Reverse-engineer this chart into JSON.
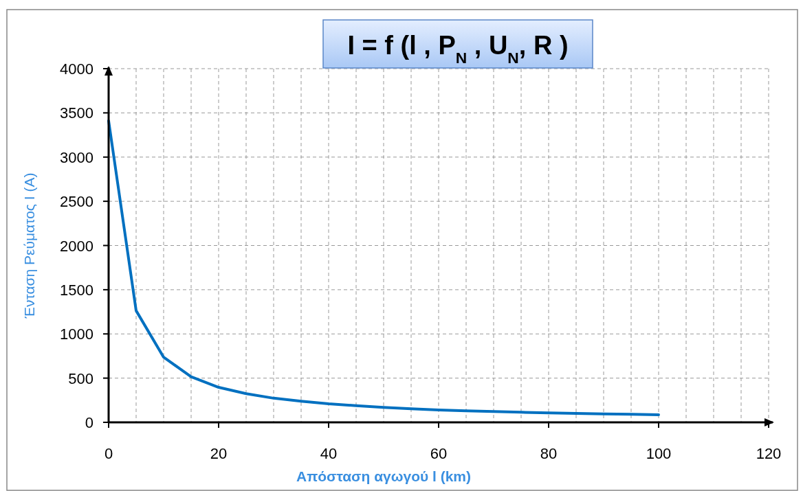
{
  "chart_data": {
    "type": "line",
    "title": "I = f (l , P$_{N}$  , U$_{N}$, R )",
    "xlabel": "Απόσταση αγωγού  l (km)",
    "ylabel": "Ένταση Ρεύματος  I (A)",
    "x": [
      0,
      5,
      10,
      15,
      20,
      25,
      30,
      35,
      40,
      45,
      50,
      55,
      60,
      65,
      70,
      75,
      80,
      85,
      90,
      95,
      100
    ],
    "series": [
      {
        "color": "#0070c0",
        "values": [
          3410,
          1263,
          736,
          516,
          396,
          324,
          273,
          238,
          209,
          189,
          168,
          153,
          140,
          130,
          122,
          114,
          106,
          101,
          96,
          91,
          85
        ]
      }
    ],
    "xlim": [
      0,
      120
    ],
    "xticks": [
      0,
      {
        "value": 5,
        "label": null
      },
      {
        "value": 10,
        "label": null
      },
      {
        "value": 15,
        "label": null
      },
      20,
      {
        "value": 25,
        "label": null
      },
      {
        "value": 30,
        "label": null
      },
      {
        "value": 35,
        "label": null
      },
      40,
      {
        "value": 45,
        "label": null
      },
      {
        "value": 50,
        "label": null
      },
      {
        "value": 55,
        "label": null
      },
      60,
      {
        "value": 65,
        "label": null
      },
      {
        "value": 70,
        "label": null
      },
      {
        "value": 75,
        "label": null
      },
      80,
      {
        "value": 85,
        "label": null
      },
      {
        "value": 90,
        "label": null
      },
      {
        "value": 95,
        "label": null
      },
      100,
      {
        "value": 105,
        "label": null
      },
      {
        "value": 110,
        "label": null
      },
      {
        "value": 115,
        "label": null
      },
      120
    ],
    "ylim": [
      0,
      4000
    ],
    "yticks": [
      0,
      500,
      1000,
      1500,
      2000,
      2500,
      3000,
      3500,
      4000
    ],
    "grid": true,
    "marker": "none",
    "line_style": "solid"
  }
}
